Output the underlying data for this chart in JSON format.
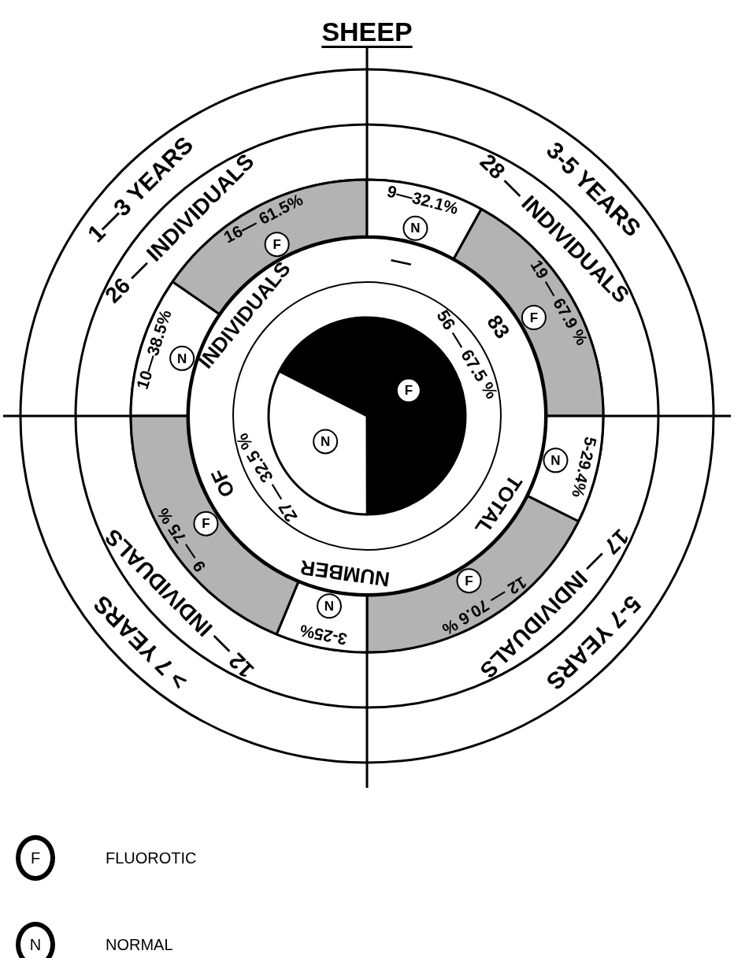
{
  "chart_data": [
    {
      "type": "pie",
      "title": "SHEEP",
      "categories": [
        "F",
        "N"
      ],
      "values": [
        56,
        27
      ],
      "colors": [
        "#000000",
        "#ffffff"
      ],
      "value_labels": [
        "56 — 67.5 %",
        "27 — 32.5 %"
      ],
      "annotations": [
        "TOTAL NUMBER OF INDIVIDUALS — 83"
      ]
    },
    {
      "type": "donut",
      "title": "1—3 YEARS",
      "subtitle": "26 — INDIVIDUALS",
      "categories": [
        "N",
        "F"
      ],
      "values": [
        10,
        16
      ],
      "colors": [
        "#ffffff",
        "#b3b3b3"
      ],
      "value_labels": [
        "10—38.5%",
        "16— 61.5%"
      ]
    },
    {
      "type": "donut",
      "title": "3-5 YEARS",
      "subtitle": "28 — INDIVIDUALS",
      "categories": [
        "N",
        "F"
      ],
      "values": [
        9,
        19
      ],
      "colors": [
        "#ffffff",
        "#b3b3b3"
      ],
      "value_labels": [
        "9—32.1%",
        "19 — 67.9 %"
      ]
    },
    {
      "type": "donut",
      "title": "5-7 YEARS",
      "subtitle": "17 — INDIVIDUALS",
      "categories": [
        "N",
        "F"
      ],
      "values": [
        5,
        12
      ],
      "colors": [
        "#ffffff",
        "#b3b3b3"
      ],
      "value_labels": [
        "5-29.4%",
        "12 — 70.6 %"
      ]
    },
    {
      "type": "donut",
      "title": "> 7 YEARS",
      "subtitle": "12 — INDIVIDUALS",
      "categories": [
        "N",
        "F"
      ],
      "values": [
        3,
        9
      ],
      "colors": [
        "#ffffff",
        "#b3b3b3"
      ],
      "value_labels": [
        "3-25%",
        "9 — 75 %"
      ]
    },
    {
      "type": "other",
      "annotations": [
        "F",
        "FLUOROTIC",
        "N",
        "NORMAL"
      ]
    }
  ]
}
